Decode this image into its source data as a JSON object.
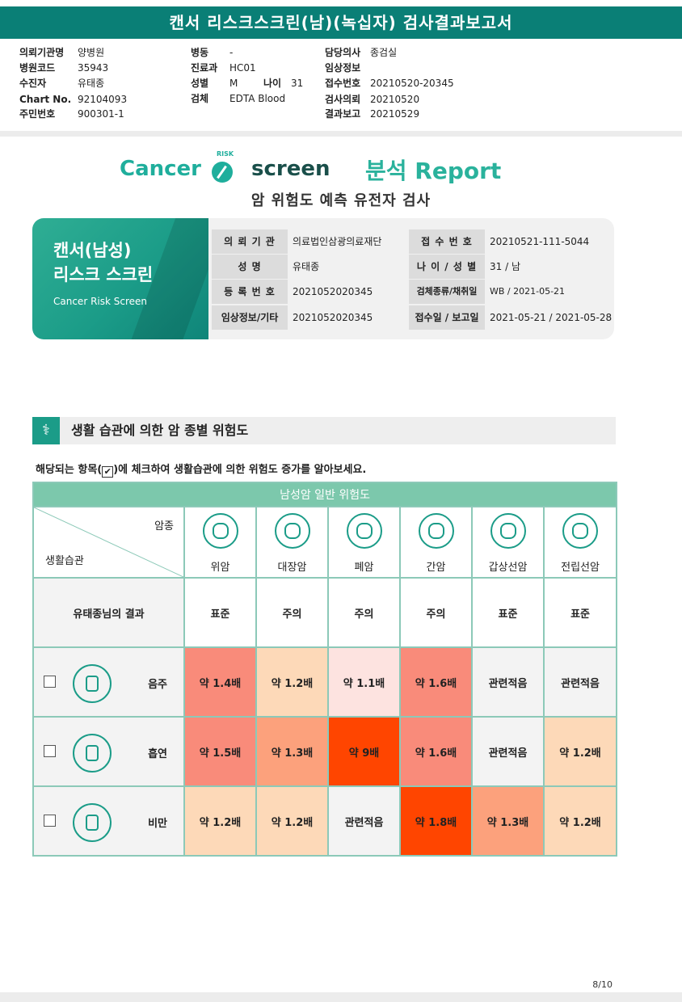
{
  "header": {
    "title": "캔서 리스크스크린(남)(녹십자) 검사결과보고서"
  },
  "patient_info": {
    "col1": [
      {
        "label": "의뢰기관명",
        "value": "양병원"
      },
      {
        "label": "병원코드",
        "value": "35943"
      },
      {
        "label": "수진자",
        "value": "유태종"
      },
      {
        "label": "Chart No.",
        "value": "92104093"
      },
      {
        "label": "주민번호",
        "value": "900301-1"
      }
    ],
    "col2": [
      {
        "label": "병동",
        "value": "-"
      },
      {
        "label": "진료과",
        "value": "HC01"
      },
      {
        "label": "성별",
        "value": "M"
      },
      {
        "label": "검체",
        "value": "EDTA Blood"
      }
    ],
    "age": {
      "label": "나이",
      "value": "31"
    },
    "col3": [
      {
        "label": "담당의사",
        "value": "종검실"
      },
      {
        "label": "임상정보",
        "value": ""
      },
      {
        "label": "접수번호",
        "value": "20210520-20345"
      },
      {
        "label": "검사의뢰",
        "value": "20210520"
      },
      {
        "label": "결과보고",
        "value": "20210529"
      }
    ]
  },
  "brand": {
    "cancer": "Cancer",
    "risk": "RISK",
    "screen": "screen",
    "report": "분석 Report",
    "subtitle": "암 위험도 예측 유전자 검사"
  },
  "card": {
    "line1": "캔서(남성)",
    "line2": "리스크 스크린",
    "line3": "Cancer Risk Screen"
  },
  "report_info": {
    "rows": [
      {
        "l1": "의 뢰 기 관",
        "v1": "의료법인삼광의료재단",
        "l2": "접 수 번 호",
        "v2": "20210521-111-5044"
      },
      {
        "l1": "성         명",
        "v1": "유태종",
        "l2": "나 이 / 성 별",
        "v2": "31 / 남"
      },
      {
        "l1": "등 록 번 호",
        "v1": "2021052020345",
        "l2": "검체종류/채취일",
        "v2": "WB / 2021-05-21"
      },
      {
        "l1": "임상정보/기타",
        "v1": "2021052020345",
        "l2": "접수일 / 보고일",
        "v2": "2021-05-21 / 2021-05-28"
      }
    ]
  },
  "section": {
    "title": "생활 습관에 의한 암 종별 위험도",
    "note_before": "해당되는 항목(",
    "note_check": "✔",
    "note_after": ")에 체크하여 생활습관에 의한 위험도 증가를 알아보세요."
  },
  "table": {
    "title": "남성암 일반 위험도",
    "corner_top": "암종",
    "corner_bottom": "생활습관",
    "cancers": [
      "위암",
      "대장암",
      "폐암",
      "간암",
      "갑상선암",
      "전립선암"
    ],
    "result_label": "유태종님의 결과",
    "results": [
      "표준",
      "주의",
      "주의",
      "주의",
      "표준",
      "표준"
    ],
    "habits": [
      {
        "name": "음주",
        "cells": [
          {
            "text": "약 1.4배",
            "color": "#f98b7a"
          },
          {
            "text": "약 1.2배",
            "color": "#fdd9b8"
          },
          {
            "text": "약 1.1배",
            "color": "#fde3e0"
          },
          {
            "text": "약 1.6배",
            "color": "#f98b7a"
          },
          {
            "text": "관련적음",
            "color": "#f3f3f3"
          },
          {
            "text": "관련적음",
            "color": "#f3f3f3"
          }
        ]
      },
      {
        "name": "흡연",
        "cells": [
          {
            "text": "약 1.5배",
            "color": "#f98b7a"
          },
          {
            "text": "약 1.3배",
            "color": "#fca17c"
          },
          {
            "text": "약 9배",
            "color": "#ff4500"
          },
          {
            "text": "약 1.6배",
            "color": "#f98b7a"
          },
          {
            "text": "관련적음",
            "color": "#f3f3f3"
          },
          {
            "text": "약 1.2배",
            "color": "#fdd9b8"
          }
        ]
      },
      {
        "name": "비만",
        "cells": [
          {
            "text": "약 1.2배",
            "color": "#fdd9b8"
          },
          {
            "text": "약 1.2배",
            "color": "#fdd9b8"
          },
          {
            "text": "관련적음",
            "color": "#f3f3f3"
          },
          {
            "text": "약 1.8배",
            "color": "#ff4500"
          },
          {
            "text": "약 1.3배",
            "color": "#fca17c"
          },
          {
            "text": "약 1.2배",
            "color": "#fdd9b8"
          }
        ]
      }
    ]
  },
  "footer": {
    "page": "8/10"
  }
}
